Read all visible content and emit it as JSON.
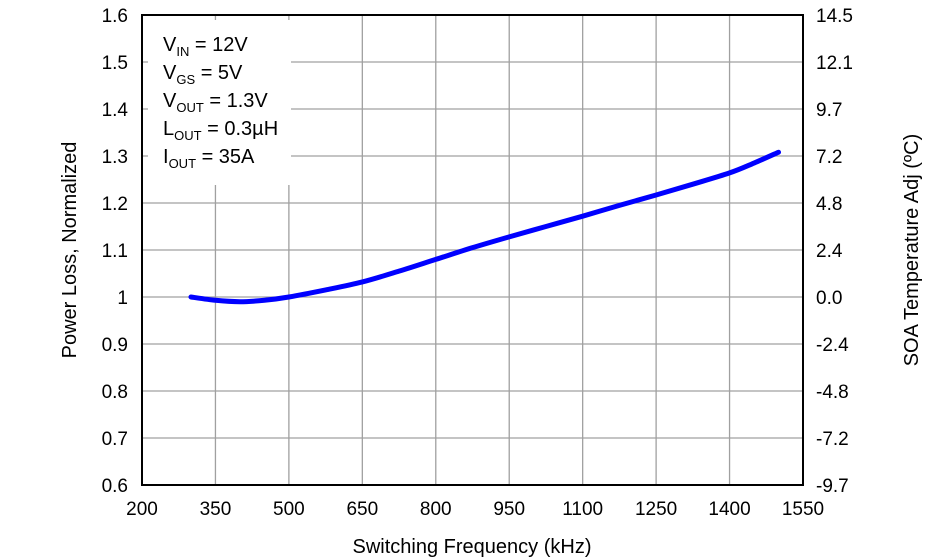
{
  "chart_data": {
    "type": "line",
    "xlabel": "Switching Frequency (kHz)",
    "ylabel": "Power Loss, Normalized",
    "y2label": "SOA Temperature Adj (ºC)",
    "xlim": [
      200,
      1550
    ],
    "ylim": [
      0.6,
      1.6
    ],
    "x_ticks": [
      "200",
      "350",
      "500",
      "650",
      "800",
      "950",
      "1100",
      "1250",
      "1400",
      "1550"
    ],
    "y_ticks": [
      "0.6",
      "0.7",
      "0.8",
      "0.9",
      "1",
      "1.1",
      "1.2",
      "1.3",
      "1.4",
      "1.5",
      "1.6"
    ],
    "y2_ticks": [
      "-9.7",
      "-7.2",
      "-4.8",
      "-2.4",
      "0.0",
      "2.4",
      "4.8",
      "7.2",
      "9.7",
      "12.1",
      "14.5"
    ],
    "grid": true,
    "series": [
      {
        "color": "#0000ff",
        "x": [
          300,
          350,
          400,
          450,
          500,
          575,
          650,
          725,
          800,
          875,
          950,
          1025,
          1100,
          1175,
          1250,
          1325,
          1400,
          1450,
          1500
        ],
        "y": [
          1.0,
          0.993,
          0.99,
          0.993,
          1.0,
          1.015,
          1.032,
          1.055,
          1.08,
          1.105,
          1.128,
          1.15,
          1.172,
          1.195,
          1.217,
          1.24,
          1.264,
          1.285,
          1.308
        ]
      }
    ],
    "annotations": [
      {
        "main": "V",
        "sub": "IN",
        "rest": " = 12V"
      },
      {
        "main": "V",
        "sub": "GS",
        "rest": " = 5V"
      },
      {
        "main": "V",
        "sub": "OUT",
        "rest": " = 1.3V"
      },
      {
        "main": "L",
        "sub": "OUT",
        "rest": " = 0.3µH"
      },
      {
        "main": "I",
        "sub": "OUT",
        "rest": " = 35A"
      }
    ]
  }
}
